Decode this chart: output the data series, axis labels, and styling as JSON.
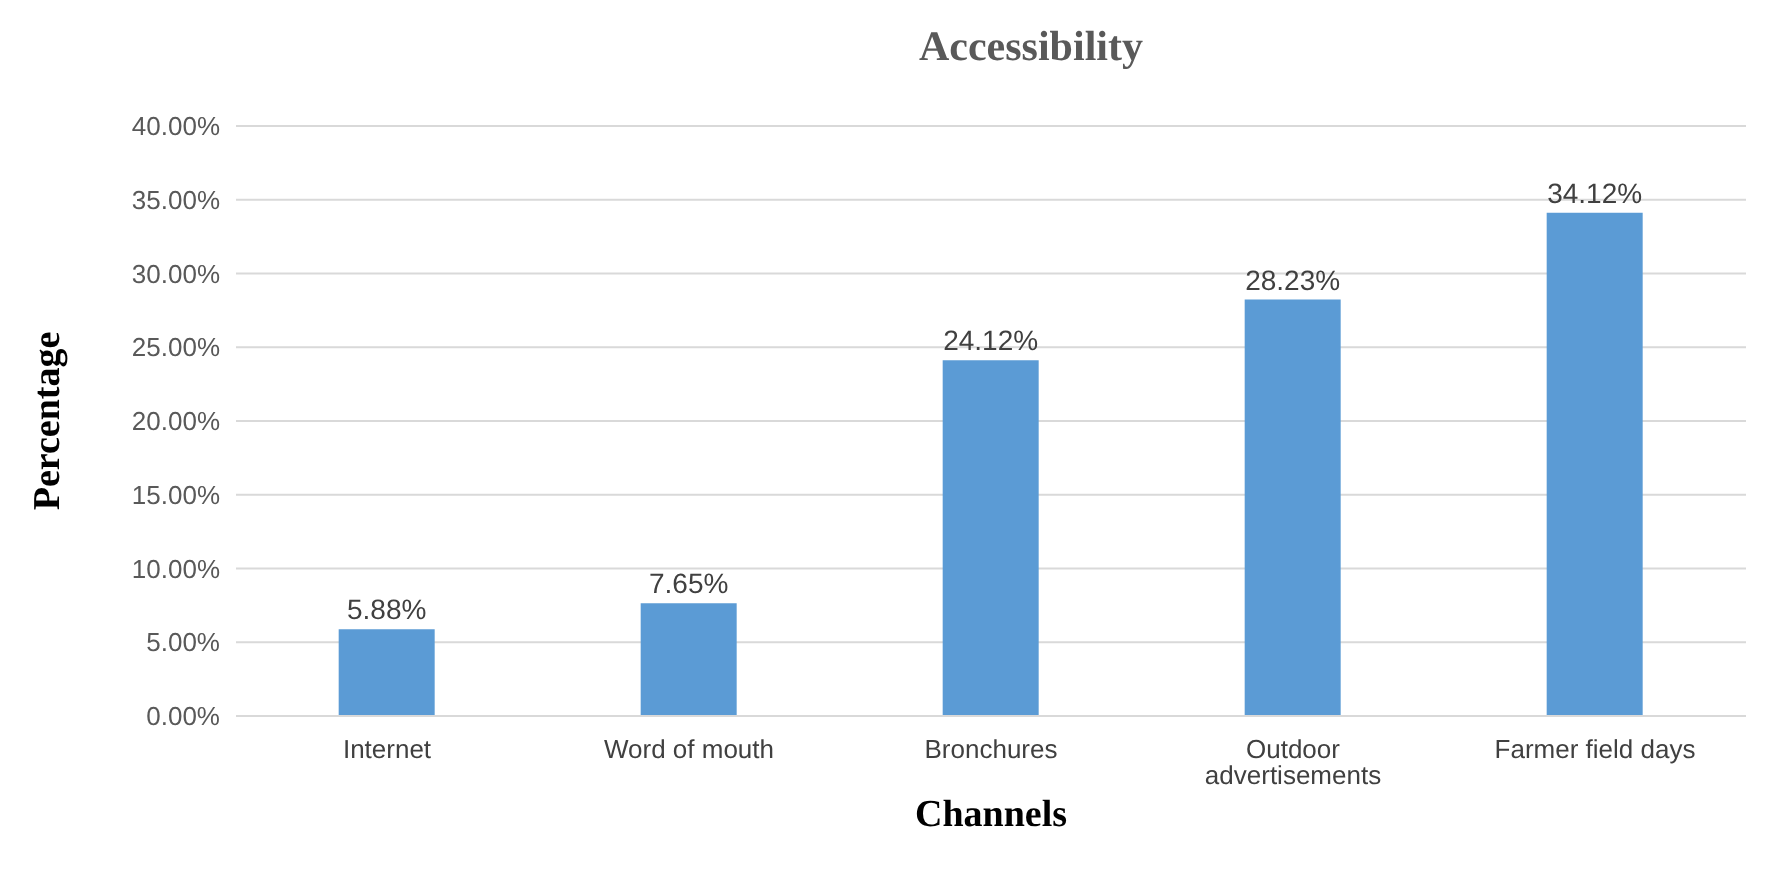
{
  "chart_data": {
    "type": "bar",
    "title": "Accessibility",
    "xlabel": "Channels",
    "ylabel": "Percentage",
    "categories": [
      "Internet",
      "Word of mouth",
      "Bronchures",
      "Outdoor advertisements",
      "Farmer field days"
    ],
    "values": [
      5.88,
      7.65,
      24.12,
      28.23,
      34.12
    ],
    "value_labels": [
      "5.88%",
      "7.65%",
      "24.12%",
      "28.23%",
      "34.12%"
    ],
    "color": "#5b9bd5",
    "ylim": [
      0,
      40
    ],
    "yticks": [
      {
        "value": 0,
        "label": "0.00%"
      },
      {
        "value": 5,
        "label": "5.00%"
      },
      {
        "value": 10,
        "label": "10.00%"
      },
      {
        "value": 15,
        "label": "15.00%"
      },
      {
        "value": 20,
        "label": "20.00%"
      },
      {
        "value": 25,
        "label": "25.00%"
      },
      {
        "value": 30,
        "label": "30.00%"
      },
      {
        "value": 35,
        "label": "35.00%"
      },
      {
        "value": 40,
        "label": "40.00%"
      }
    ],
    "grid": "y"
  }
}
